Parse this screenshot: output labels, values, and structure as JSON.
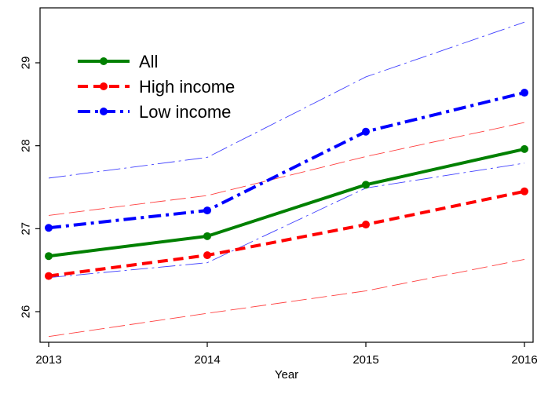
{
  "chart_data": {
    "type": "line",
    "title": "",
    "xlabel": "Year",
    "ylabel": "",
    "x": [
      2013,
      2014,
      2015,
      2016
    ],
    "x_tick_labels": [
      "2013",
      "2014",
      "2015",
      "2016"
    ],
    "y_ticks": [
      26,
      27,
      28,
      29
    ],
    "y_tick_labels": [
      "26",
      "27",
      "28",
      "29"
    ],
    "xlim": [
      2013,
      2016
    ],
    "ylim": [
      25.6,
      29.65
    ],
    "grid": false,
    "legend_position": "top-left",
    "series": [
      {
        "name": "All",
        "values": [
          26.67,
          26.91,
          27.53,
          27.96
        ],
        "color": "#008000",
        "dash": "solid",
        "marker": "circle"
      },
      {
        "name": "High income",
        "values": [
          26.43,
          26.68,
          27.05,
          27.45
        ],
        "color": "#ff0000",
        "dash": "dash",
        "marker": "circle"
      },
      {
        "name": "Low income",
        "values": [
          27.01,
          27.22,
          28.17,
          28.64
        ],
        "color": "#0000ff",
        "dash": "dashdot",
        "marker": "circle"
      }
    ],
    "confidence_bands": [
      {
        "series": "High income",
        "upper": [
          27.16,
          27.4,
          27.87,
          28.28
        ],
        "lower": [
          25.7,
          25.98,
          26.25,
          26.63
        ],
        "color": "#ff0000"
      },
      {
        "series": "Low income",
        "upper": [
          27.61,
          27.86,
          28.83,
          29.49
        ],
        "lower": [
          26.41,
          26.59,
          27.49,
          27.79
        ],
        "color": "#0000ff"
      }
    ]
  }
}
